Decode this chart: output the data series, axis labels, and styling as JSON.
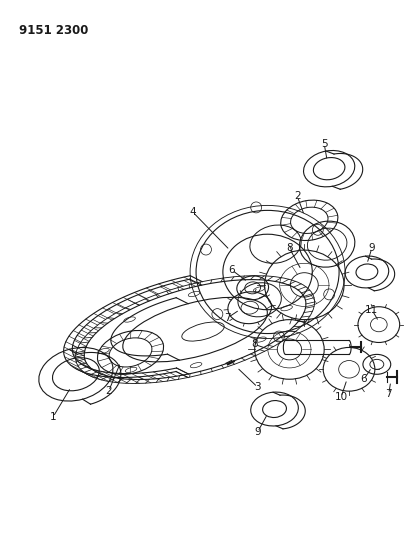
{
  "title": "9151 2300",
  "bg_color": "#ffffff",
  "line_color": "#1a1a1a",
  "title_fontsize": 8.5,
  "title_fontweight": "bold",
  "fig_width": 4.11,
  "fig_height": 5.33,
  "dpi": 100
}
